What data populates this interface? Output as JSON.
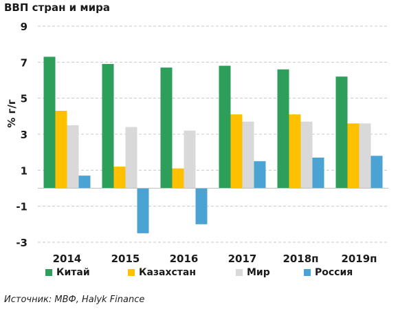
{
  "title": "ВВП стран и мира",
  "source": "Источник: МВФ, Halyk Finance",
  "chart_data": {
    "type": "bar",
    "title": "ВВП стран и мира",
    "ylabel": "% г/г",
    "xlabel": "",
    "categories": [
      "2014",
      "2015",
      "2016",
      "2017",
      "2018п",
      "2019п"
    ],
    "ylim": [
      -3,
      9
    ],
    "yticks": [
      9,
      7,
      5,
      3,
      1,
      -1,
      -3
    ],
    "grid": true,
    "legend_position": "bottom",
    "series": [
      {
        "name": "Китай",
        "color": "#2e9e5b",
        "values": [
          7.3,
          6.9,
          6.7,
          6.8,
          6.6,
          6.2
        ]
      },
      {
        "name": "Казахстан",
        "color": "#ffc000",
        "values": [
          4.3,
          1.2,
          1.1,
          4.1,
          4.1,
          3.6
        ]
      },
      {
        "name": "Мир",
        "color": "#d9d9d9",
        "values": [
          3.5,
          3.4,
          3.2,
          3.7,
          3.7,
          3.6
        ]
      },
      {
        "name": "Россия",
        "color": "#4ba3d3",
        "values": [
          0.7,
          -2.5,
          -2.0,
          1.5,
          1.7,
          1.8
        ]
      }
    ]
  }
}
